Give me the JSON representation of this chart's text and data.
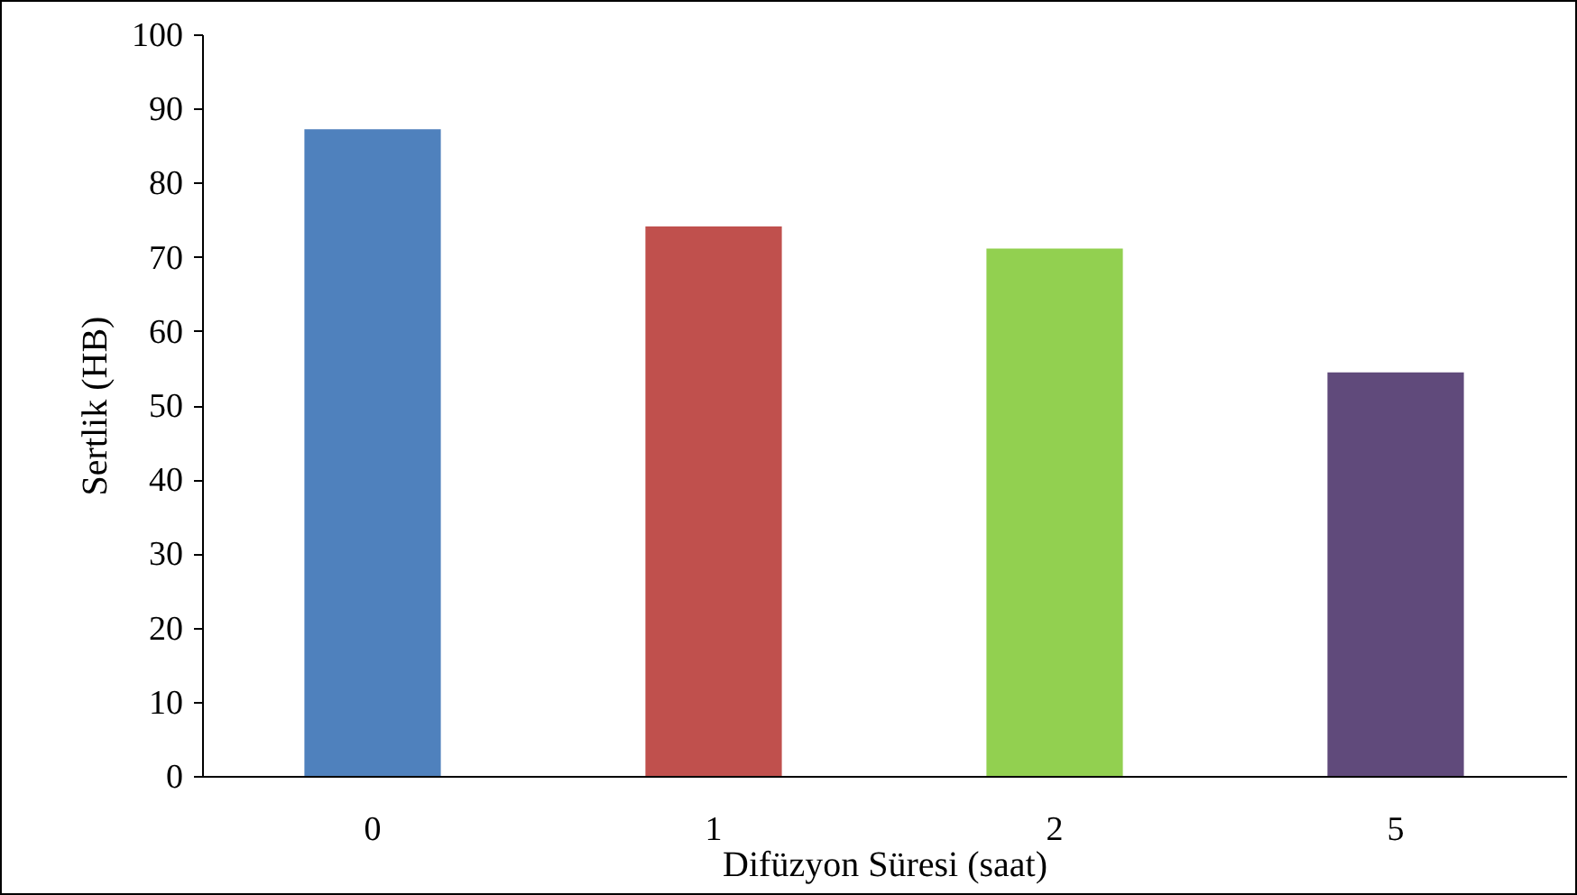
{
  "chart_data": {
    "type": "bar",
    "xlabel": "Difüzyon Süresi (saat)",
    "ylabel": "Sertlik (HB)",
    "categories": [
      "0",
      "1",
      "2",
      "5"
    ],
    "values": [
      87.2,
      74.1,
      71.1,
      54.4
    ],
    "colors": [
      "#4f81bd",
      "#c0504d",
      "#92d050",
      "#604a7b"
    ],
    "ylim": [
      0,
      100
    ],
    "yticks": [
      0,
      10,
      20,
      30,
      40,
      50,
      60,
      70,
      80,
      90,
      100
    ],
    "grid": false
  }
}
